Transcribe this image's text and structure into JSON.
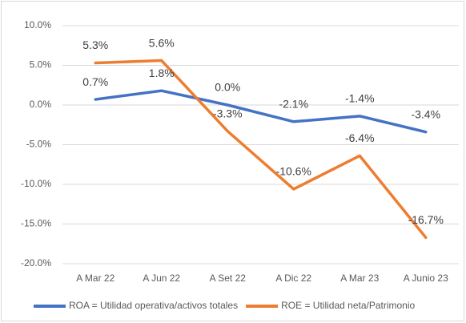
{
  "chart_data": {
    "type": "line",
    "categories": [
      "A Mar 22",
      "A Jun 22",
      "A Set 22",
      "A Dic 22",
      "A Mar 23",
      "A Junio 23"
    ],
    "series": [
      {
        "name": "ROA = Utilidad operativa/activos totales",
        "color": "#4472c4",
        "values": [
          0.7,
          1.8,
          0.0,
          -2.1,
          -1.4,
          -3.4
        ],
        "value_labels": [
          "0.7%",
          "1.8%",
          "0.0%",
          "-2.1%",
          "-1.4%",
          "-3.4%"
        ]
      },
      {
        "name": "ROE = Utilidad neta/Patrimonio",
        "color": "#ed7d31",
        "values": [
          5.3,
          5.6,
          -3.3,
          -10.6,
          -6.4,
          -16.7
        ],
        "value_labels": [
          "5.3%",
          "5.6%",
          "-3.3%",
          "-10.6%",
          "-6.4%",
          "-16.7%"
        ]
      }
    ],
    "ylim": [
      -20,
      10
    ],
    "yticks": [
      {
        "value": -20,
        "label": "-20.0%"
      },
      {
        "value": -15,
        "label": "-15.0%"
      },
      {
        "value": -10,
        "label": "-10.0%"
      },
      {
        "value": -5,
        "label": "-5.0%"
      },
      {
        "value": 0,
        "label": "0.0%"
      },
      {
        "value": 5,
        "label": "5.0%"
      },
      {
        "value": 10,
        "label": "10.0%"
      }
    ],
    "grid": true,
    "legend": "bottom"
  }
}
